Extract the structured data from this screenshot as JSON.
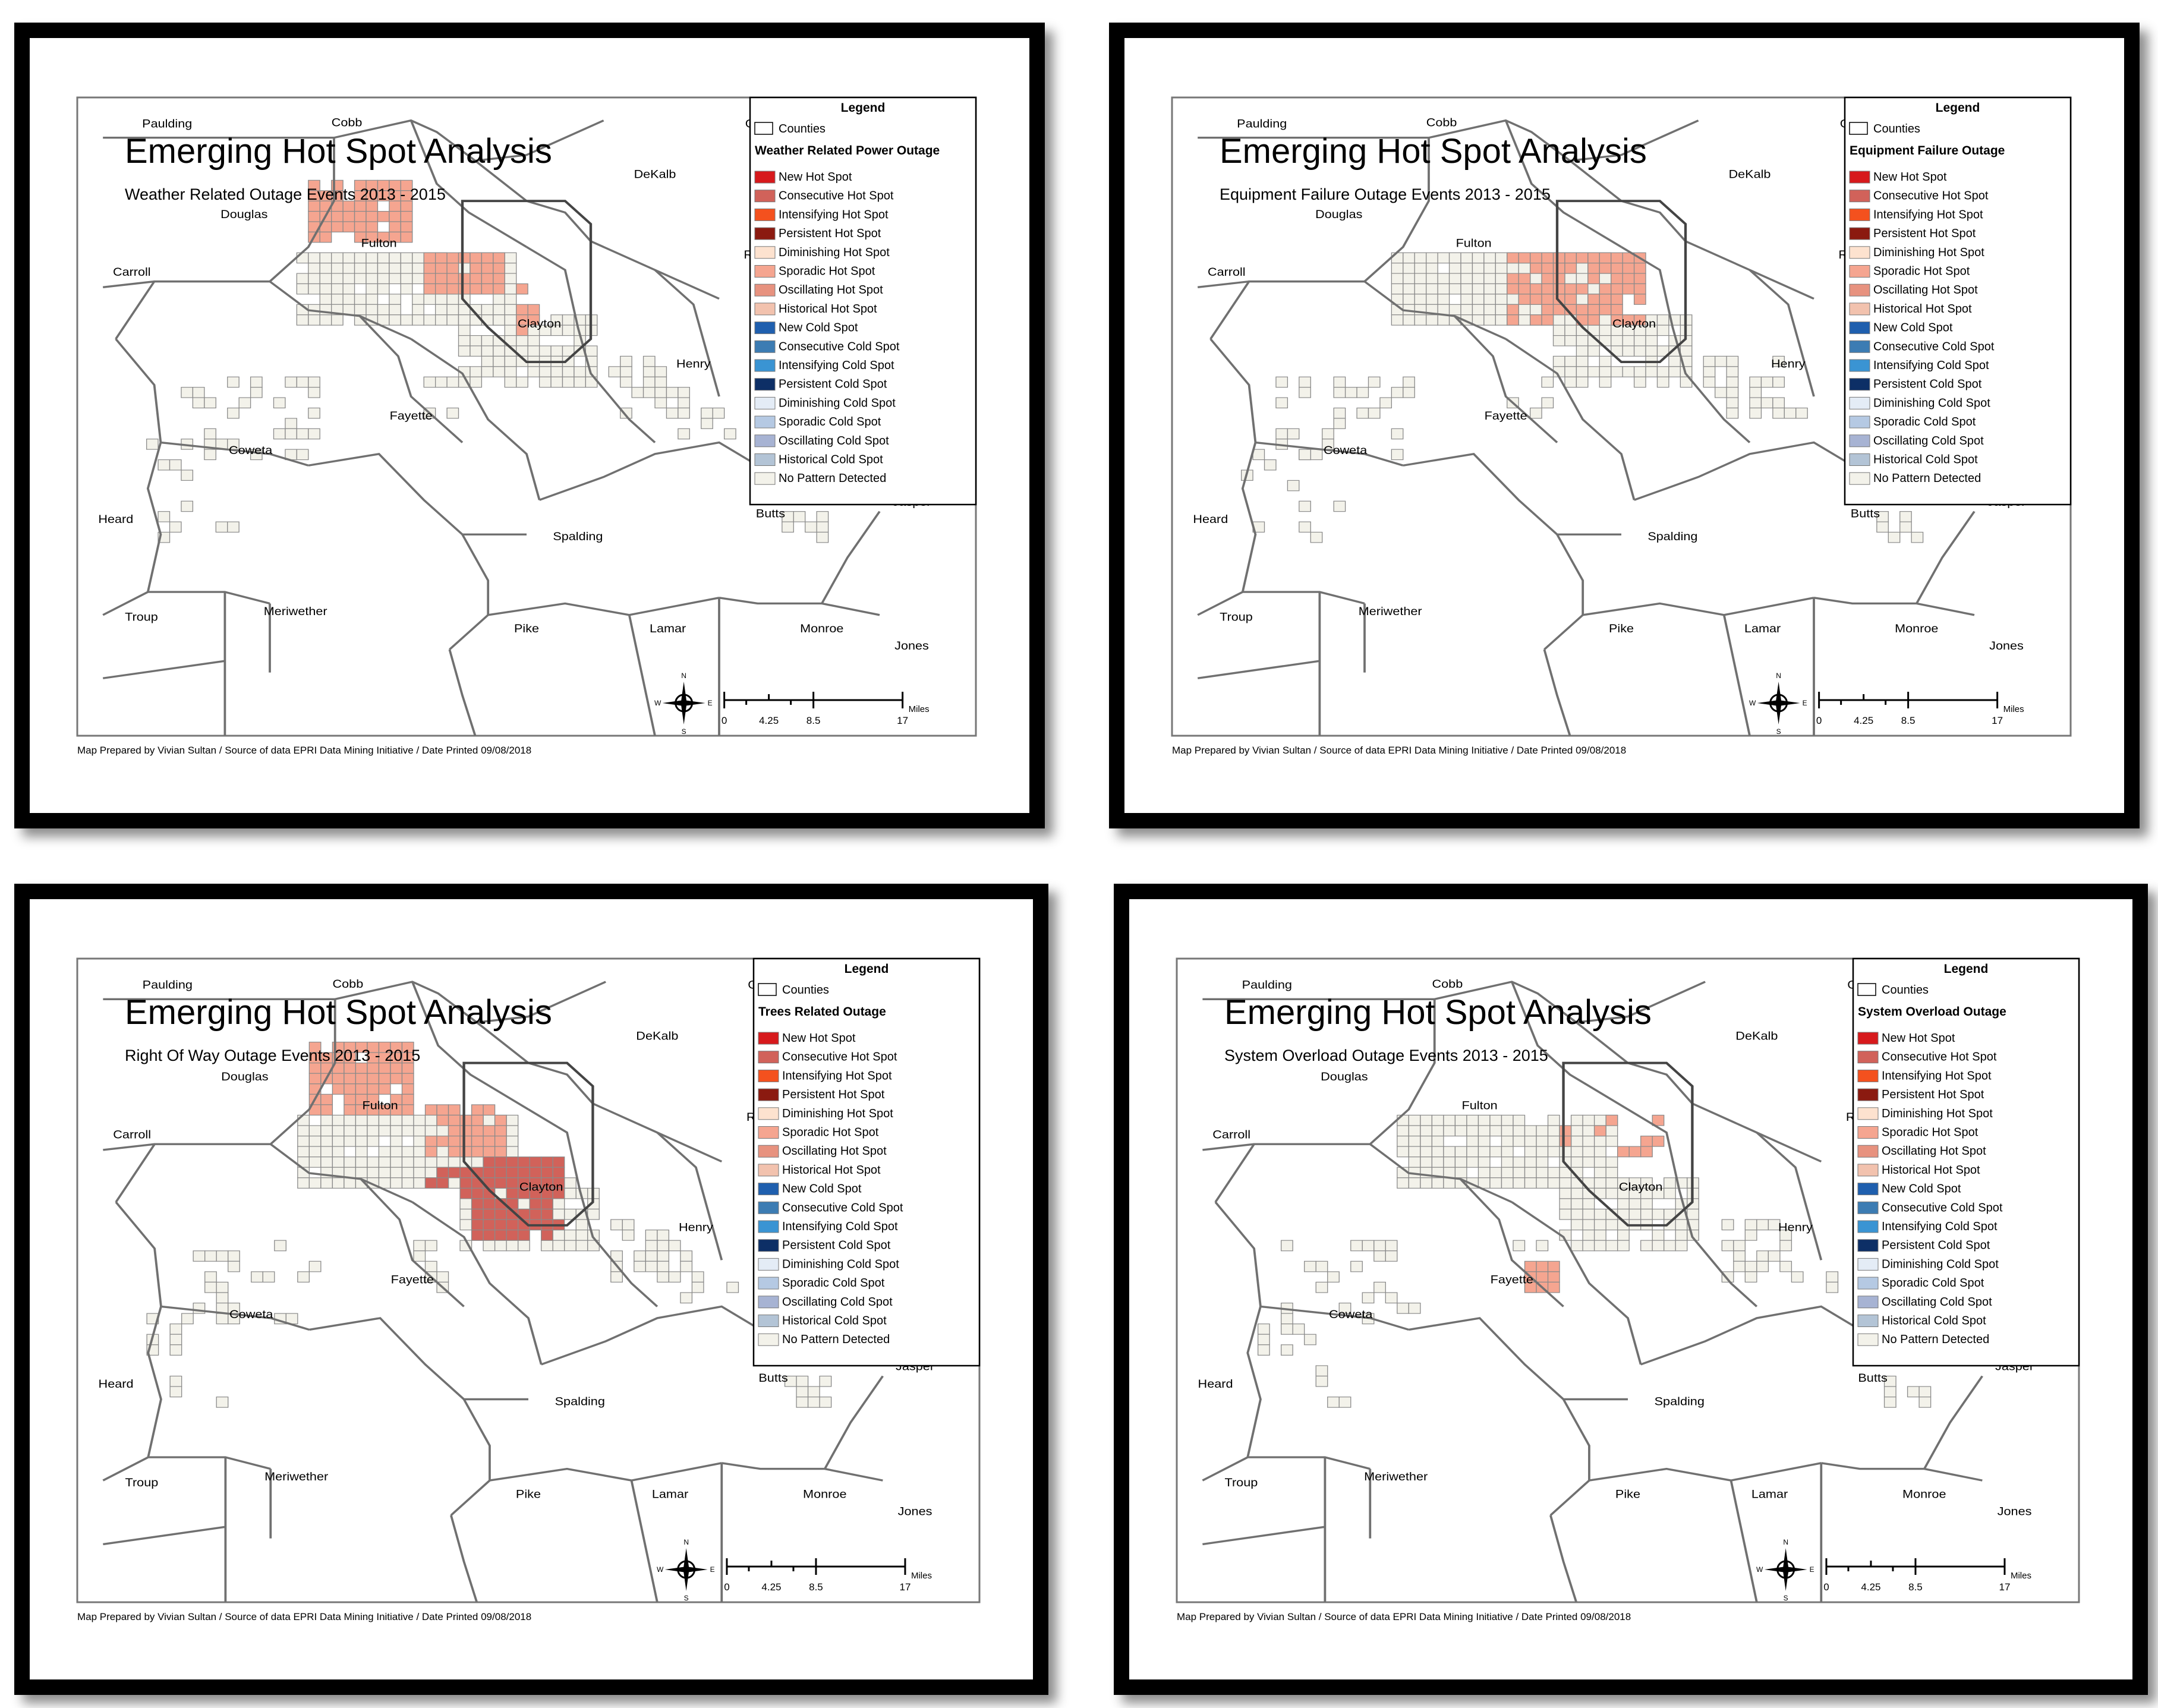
{
  "map_common": {
    "title": "Emerging Hot Spot Analysis",
    "footer": "Map Prepared by Vivian Sultan / Source of data EPRI Data Mining Initiative / Date Printed 09/08/2018",
    "legend_header": "Legend",
    "counties_label": "Counties",
    "scale": {
      "ticks": [
        "0",
        "4.25",
        "8.5",
        "17"
      ],
      "unit": "Miles"
    },
    "compass": {
      "n": "N",
      "s": "S",
      "e": "E",
      "w": "W"
    },
    "legend_items": [
      {
        "label": "New Hot Spot",
        "color": "#d7191c"
      },
      {
        "label": "Consecutive Hot Spot",
        "color": "#d1625a"
      },
      {
        "label": "Intensifying Hot Spot",
        "color": "#f4511e"
      },
      {
        "label": "Persistent Hot Spot",
        "color": "#8b1a10"
      },
      {
        "label": "Diminishing Hot Spot",
        "color": "#fde2cf"
      },
      {
        "label": "Sporadic Hot Spot",
        "color": "#f5a590"
      },
      {
        "label": "Oscillating Hot Spot",
        "color": "#e7927f"
      },
      {
        "label": "Historical Hot Spot",
        "color": "#f2c2ae"
      },
      {
        "label": "New Cold Spot",
        "color": "#1f5fae"
      },
      {
        "label": "Consecutive Cold Spot",
        "color": "#3c7cb3"
      },
      {
        "label": "Intensifying Cold Spot",
        "color": "#3a94d3"
      },
      {
        "label": "Persistent Cold Spot",
        "color": "#0d2f66"
      },
      {
        "label": "Diminishing Cold Spot",
        "color": "#e4ecf6"
      },
      {
        "label": "Sporadic Cold Spot",
        "color": "#b5c9e3"
      },
      {
        "label": "Oscillating Cold Spot",
        "color": "#a7b3d3"
      },
      {
        "label": "Historical Cold Spot",
        "color": "#b3c4d6"
      },
      {
        "label": "No Pattern Detected",
        "color": "#f3f2ea"
      }
    ],
    "counties": {
      "paulding": "Paulding",
      "cobb": "Cobb",
      "gwinnett": "Gwinnett",
      "dekalb": "DeKalb",
      "douglas": "Douglas",
      "fulton": "Fulton",
      "rockdale": "Rockdale",
      "carroll": "Carroll",
      "clayton": "Clayton",
      "henry": "Henry",
      "fayette": "Fayette",
      "coweta": "Coweta",
      "heard": "Heard",
      "butts": "Butts",
      "jasper": "Jasper",
      "spalding": "Spalding",
      "troup": "Troup",
      "meriwether": "Meriwether",
      "pike": "Pike",
      "lamar": "Lamar",
      "monroe": "Monroe",
      "jones": "Jones"
    }
  },
  "maps": [
    {
      "subtitle": "Weather Related Outage Events 2013 - 2015",
      "legend_title": "Weather Related Power Outage"
    },
    {
      "subtitle": "Equipment Failure Outage Events 2013 - 2015",
      "legend_title": "Equipment Failure Outage"
    },
    {
      "subtitle": "Right Of Way Outage Events 2013 - 2015",
      "legend_title": "Trees Related Outage"
    },
    {
      "subtitle": "System Overload Outage Events 2013 - 2015",
      "legend_title": "System Overload Outage"
    }
  ],
  "colors": {
    "frame": "#000000",
    "county_line": "#707070",
    "grid_stroke": "#8a8a8a"
  }
}
